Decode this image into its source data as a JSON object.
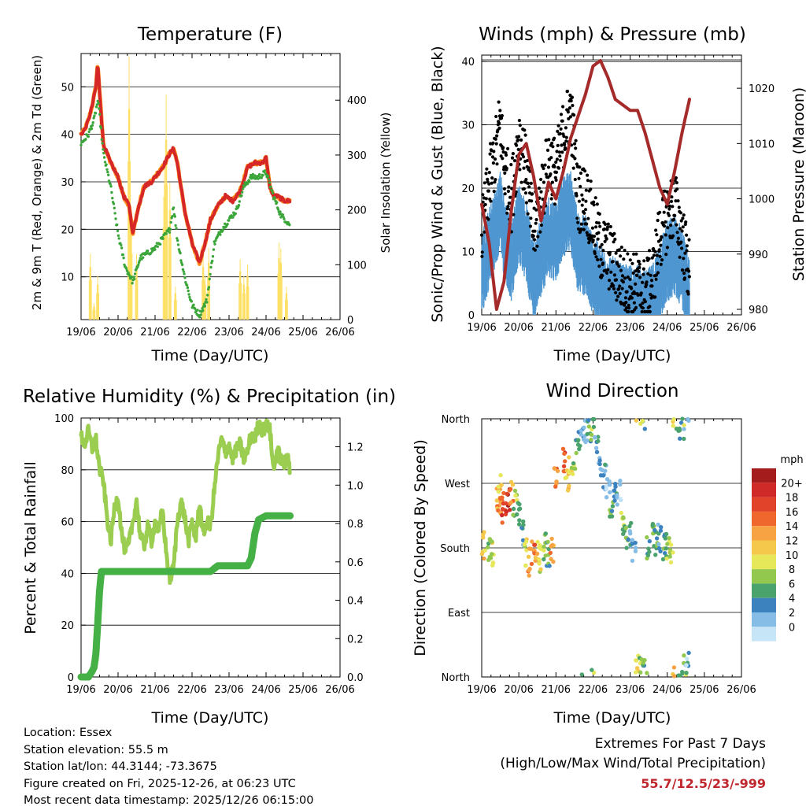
{
  "colors": {
    "temp2m": "#d62728",
    "temp9m": "#ff8c1a",
    "dewpoint": "#3aa63a",
    "solar": "#ffe066",
    "gust": "#000000",
    "wind": "#4f97d1",
    "pressure": "#a52a2a",
    "rh": "#9acd50",
    "rain": "#45b045",
    "extremes": "#c0272d"
  },
  "time_ticks": [
    "19/06",
    "20/06",
    "21/06",
    "22/06",
    "23/06",
    "24/06",
    "25/06",
    "26/06"
  ],
  "panels": {
    "temperature": {
      "title": "Temperature (F)",
      "xlabel": "Time (Day/UTC)",
      "ylabel_left": "2m & 9m T (Red, Orange) & 2m Td (Green)",
      "ylabel_right": "Solar Insolation (Yellow)",
      "left_ticks": [
        "10",
        "20",
        "30",
        "40",
        "50"
      ],
      "right_ticks": [
        "0",
        "100",
        "200",
        "300",
        "400"
      ]
    },
    "winds": {
      "title": "Winds (mph) & Pressure (mb)",
      "xlabel": "Time (Day/UTC)",
      "ylabel_left": "Sonic/Prop Wind & Gust (Blue, Black)",
      "ylabel_right": "Station Pressure (Maroon)",
      "left_ticks": [
        "0",
        "10",
        "20",
        "30",
        "40"
      ],
      "right_ticks": [
        "980",
        "990",
        "1000",
        "1010",
        "1020"
      ]
    },
    "humidity": {
      "title": "Relative Humidity (%) & Precipitation (in)",
      "xlabel": "Time (Day/UTC)",
      "ylabel_left": "Percent & Total Rainfall",
      "left_ticks": [
        "0",
        "20",
        "40",
        "60",
        "80",
        "100"
      ],
      "right_ticks": [
        "0.0",
        "0.2",
        "0.4",
        "0.6",
        "0.8",
        "1.0",
        "1.2"
      ]
    },
    "direction": {
      "title": "Wind Direction",
      "xlabel": "Time (Day/UTC)",
      "ylabel_left": "Direction (Colored By Speed)",
      "dir_ticks": [
        "North",
        "East",
        "South",
        "West",
        "North"
      ],
      "legend_title": "mph",
      "legend_labels": [
        "20+",
        "18",
        "16",
        "14",
        "12",
        "10",
        "8",
        "6",
        "4",
        "2",
        "0"
      ],
      "legend_colors": [
        "#a51c1c",
        "#cf2a27",
        "#e0432a",
        "#f0672e",
        "#f8a343",
        "#f5c84b",
        "#e6e85a",
        "#93c84e",
        "#4aa36d",
        "#3c82bf",
        "#86bde7",
        "#c6e5f7"
      ]
    }
  },
  "chart_data": [
    {
      "type": "line",
      "title": "Temperature (F)",
      "xlabel": "Time (Day/UTC)",
      "ylabel": "2m & 9m T (Red, Orange) & 2m Td (Green)",
      "y2label": "Solar Insolation (Yellow)",
      "xlim": [
        19.0,
        26.0
      ],
      "ylim": [
        1,
        57
      ],
      "y2lim": [
        0,
        485
      ],
      "series": [
        {
          "name": "2m T",
          "x": [
            19.0,
            19.1,
            19.2,
            19.3,
            19.4,
            19.45,
            19.5,
            19.6,
            19.8,
            20.0,
            20.15,
            20.3,
            20.4,
            20.5,
            20.7,
            20.9,
            21.0,
            21.2,
            21.4,
            21.5,
            21.6,
            21.8,
            22.0,
            22.1,
            22.2,
            22.35,
            22.5,
            22.7,
            22.9,
            23.1,
            23.3,
            23.5,
            23.7,
            23.9,
            24.0,
            24.1,
            24.2,
            24.3,
            24.5,
            24.65
          ],
          "values": [
            40,
            41,
            43,
            46,
            50,
            55,
            49,
            38,
            34,
            31,
            27,
            25,
            19,
            23,
            29,
            30,
            31,
            33,
            36,
            37,
            34,
            24,
            17,
            15,
            13,
            17,
            22,
            25,
            27,
            26,
            28,
            33,
            34,
            34,
            35,
            29,
            27,
            27,
            26,
            26
          ]
        },
        {
          "name": "9m T",
          "x": [
            19.0,
            19.45,
            19.6,
            20.0,
            20.4,
            20.9,
            21.5,
            22.2,
            22.5,
            23.0,
            23.5,
            24.0,
            24.2,
            24.65
          ],
          "values": [
            40,
            56,
            38,
            31,
            19,
            30,
            38,
            13,
            22,
            26,
            33,
            35,
            27,
            26
          ]
        },
        {
          "name": "2m Td",
          "x": [
            19.0,
            19.2,
            19.35,
            19.45,
            19.5,
            19.6,
            19.8,
            20.0,
            20.2,
            20.4,
            20.6,
            20.8,
            21.0,
            21.2,
            21.4,
            21.5,
            21.6,
            21.8,
            22.0,
            22.2,
            22.4,
            22.6,
            22.8,
            23.0,
            23.2,
            23.4,
            23.6,
            23.8,
            24.0,
            24.2,
            24.4,
            24.65
          ],
          "values": [
            38,
            40,
            43,
            47,
            44,
            36,
            29,
            19,
            12,
            9,
            14,
            15,
            16,
            18,
            20,
            25,
            18,
            10,
            4,
            2,
            5,
            17,
            20,
            22,
            24,
            29,
            31,
            31,
            32,
            27,
            23,
            21
          ]
        },
        {
          "name": "Solar Insolation",
          "axis": "y2",
          "x": [
            19.25,
            19.35,
            19.45,
            20.3,
            20.35,
            20.5,
            21.25,
            21.3,
            21.4,
            21.55,
            22.3,
            22.35,
            22.45,
            23.3,
            23.4,
            23.5,
            24.35,
            24.4,
            24.55
          ],
          "values": [
            120,
            30,
            80,
            480,
            200,
            120,
            280,
            410,
            250,
            60,
            120,
            80,
            130,
            110,
            80,
            100,
            140,
            130,
            60
          ]
        }
      ]
    },
    {
      "type": "scatter",
      "title": "Winds (mph) & Pressure (mb)",
      "xlabel": "Time (Day/UTC)",
      "ylabel": "Sonic/Prop Wind & Gust (Blue, Black)",
      "y2label": "Station Pressure (Maroon)",
      "xlim": [
        19.0,
        26.0
      ],
      "ylim": [
        0,
        41
      ],
      "y2lim": [
        979,
        1026
      ],
      "series": [
        {
          "name": "Gust",
          "x": [
            19.0,
            19.2,
            19.4,
            19.5,
            19.6,
            19.8,
            20.0,
            20.2,
            20.4,
            20.6,
            20.8,
            21.0,
            21.2,
            21.4,
            21.6,
            21.8,
            22.0,
            22.2,
            22.4,
            22.6,
            22.8,
            23.0,
            23.2,
            23.4,
            23.6,
            23.8,
            24.0,
            24.2,
            24.4,
            24.6
          ],
          "values": [
            14,
            22,
            28,
            32,
            25,
            20,
            30,
            24,
            14,
            20,
            26,
            24,
            30,
            34,
            20,
            20,
            16,
            12,
            11,
            9,
            7,
            6,
            6,
            5,
            7,
            14,
            17,
            19,
            14,
            8
          ]
        },
        {
          "name": "Wind",
          "x": [
            19.0,
            19.2,
            19.4,
            19.5,
            19.6,
            19.8,
            20.0,
            20.2,
            20.4,
            20.6,
            20.8,
            21.0,
            21.2,
            21.4,
            21.6,
            21.8,
            22.0,
            22.2,
            22.4,
            22.6,
            22.8,
            23.0,
            23.2,
            23.4,
            23.6,
            23.8,
            24.0,
            24.2,
            24.4,
            24.6
          ],
          "values": [
            8,
            12,
            16,
            18,
            14,
            10,
            16,
            13,
            7,
            11,
            14,
            13,
            17,
            18,
            11,
            11,
            8,
            6,
            5,
            4,
            3,
            3,
            3,
            2,
            3,
            7,
            10,
            11,
            9,
            4
          ]
        },
        {
          "name": "Station Pressure",
          "axis": "y2",
          "x": [
            19.0,
            19.2,
            19.4,
            19.6,
            19.8,
            20.0,
            20.2,
            20.4,
            20.6,
            20.8,
            21.0,
            21.2,
            21.4,
            21.6,
            21.8,
            22.0,
            22.2,
            22.4,
            22.6,
            22.8,
            23.0,
            23.2,
            23.4,
            23.6,
            23.8,
            24.0,
            24.2,
            24.4,
            24.6
          ],
          "values": [
            999,
            992,
            980,
            985,
            998,
            1008,
            1010,
            1004,
            996,
            1003,
            1000,
            1005,
            1011,
            1015,
            1019,
            1024,
            1025,
            1022,
            1018,
            1017,
            1016,
            1016,
            1012,
            1007,
            1002,
            999,
            1005,
            1012,
            1018
          ]
        }
      ]
    },
    {
      "type": "line",
      "title": "Relative Humidity (%) & Precipitation (in)",
      "xlabel": "Time (Day/UTC)",
      "ylabel": "Percent & Total Rainfall",
      "xlim": [
        19.0,
        26.0
      ],
      "ylim": [
        0,
        100
      ],
      "y2lim": [
        0,
        1.35
      ],
      "series": [
        {
          "name": "Relative Humidity",
          "x": [
            19.0,
            19.1,
            19.2,
            19.3,
            19.4,
            19.5,
            19.6,
            19.7,
            19.8,
            19.9,
            20.0,
            20.1,
            20.2,
            20.3,
            20.4,
            20.5,
            20.6,
            20.7,
            20.8,
            20.9,
            21.0,
            21.1,
            21.2,
            21.3,
            21.4,
            21.5,
            21.6,
            21.7,
            21.8,
            21.9,
            22.0,
            22.1,
            22.2,
            22.3,
            22.4,
            22.5,
            22.6,
            22.7,
            22.8,
            22.9,
            23.0,
            23.1,
            23.2,
            23.3,
            23.4,
            23.5,
            23.6,
            23.7,
            23.8,
            23.9,
            24.0,
            24.1,
            24.2,
            24.3,
            24.4,
            24.5,
            24.6,
            24.65
          ],
          "values": [
            93,
            90,
            95,
            88,
            92,
            80,
            76,
            62,
            52,
            65,
            70,
            55,
            48,
            52,
            60,
            68,
            55,
            50,
            58,
            52,
            60,
            56,
            65,
            48,
            38,
            42,
            60,
            68,
            62,
            52,
            60,
            53,
            68,
            55,
            60,
            58,
            72,
            85,
            92,
            86,
            90,
            84,
            88,
            90,
            84,
            87,
            94,
            92,
            98,
            95,
            97,
            96,
            80,
            88,
            84,
            82,
            85,
            80
          ]
        },
        {
          "name": "Total Rainfall",
          "axis": "y2",
          "x": [
            19.0,
            19.2,
            19.3,
            19.35,
            19.4,
            19.45,
            19.5,
            19.55,
            20.0,
            21.0,
            22.0,
            22.5,
            22.7,
            23.0,
            23.5,
            23.6,
            23.7,
            23.8,
            24.0,
            24.2,
            24.65
          ],
          "values": [
            0.0,
            0.0,
            0.03,
            0.05,
            0.12,
            0.28,
            0.45,
            0.55,
            0.55,
            0.55,
            0.55,
            0.55,
            0.58,
            0.58,
            0.58,
            0.62,
            0.75,
            0.82,
            0.84,
            0.84,
            0.84
          ]
        }
      ]
    },
    {
      "type": "scatter",
      "title": "Wind Direction",
      "xlabel": "Time (Day/UTC)",
      "ylabel": "Direction (Colored By Speed)",
      "xlim": [
        19.0,
        26.0
      ],
      "ylim": [
        0,
        360
      ],
      "yticks": [
        "North",
        "East",
        "South",
        "West",
        "North"
      ],
      "colorbar_units": "mph",
      "series": [
        {
          "name": "Direction vs Speed",
          "x": [
            19.05,
            19.2,
            19.3,
            19.45,
            19.5,
            19.55,
            19.6,
            19.7,
            19.8,
            19.9,
            20.0,
            20.1,
            20.2,
            20.3,
            20.4,
            20.5,
            20.6,
            20.7,
            20.8,
            20.9,
            21.0,
            21.2,
            21.3,
            21.4,
            21.5,
            21.6,
            21.7,
            21.8,
            21.9,
            22.0,
            22.1,
            22.2,
            22.3,
            22.4,
            22.5,
            22.6,
            22.7,
            22.8,
            22.9,
            23.0,
            23.1,
            23.2,
            23.3,
            23.4,
            23.5,
            23.6,
            23.7,
            23.8,
            23.9,
            24.0,
            24.1,
            24.2,
            24.3,
            24.4,
            24.5,
            24.55
          ],
          "values": [
            185,
            180,
            175,
            250,
            265,
            240,
            235,
            245,
            255,
            240,
            230,
            200,
            175,
            160,
            170,
            175,
            165,
            180,
            170,
            175,
            275,
            300,
            280,
            290,
            310,
            330,
            350,
            345,
            340,
            355,
            330,
            300,
            280,
            260,
            240,
            250,
            255,
            215,
            190,
            200,
            180,
            15,
            10,
            5,
            180,
            200,
            185,
            195,
            180,
            185,
            175,
            355,
            345,
            350,
            10,
            15
          ],
          "speed": [
            12,
            8,
            10,
            14,
            12,
            16,
            18,
            20,
            14,
            8,
            6,
            4,
            10,
            14,
            16,
            12,
            10,
            8,
            6,
            14,
            16,
            18,
            12,
            10,
            8,
            6,
            4,
            2,
            6,
            8,
            4,
            2,
            4,
            2,
            6,
            4,
            2,
            8,
            6,
            4,
            2,
            10,
            8,
            6,
            6,
            8,
            6,
            4,
            6,
            8,
            10,
            12,
            6,
            4,
            8,
            2
          ]
        }
      ]
    }
  ],
  "info": {
    "location": "Location: Essex",
    "elevation": "Station elevation: 55.5 m",
    "latlon": "Station lat/lon: 44.3144; -73.3675",
    "created": "Figure created on Fri, 2025-12-26, at 06:23 UTC",
    "timestamp": "Most recent data timestamp: 2025/12/26 06:15:00"
  },
  "extremes": {
    "line1": "Extremes For Past 7 Days",
    "line2": "(High/Low/Max Wind/Total Precipitation)",
    "values": "55.7/12.5/23/-999"
  }
}
